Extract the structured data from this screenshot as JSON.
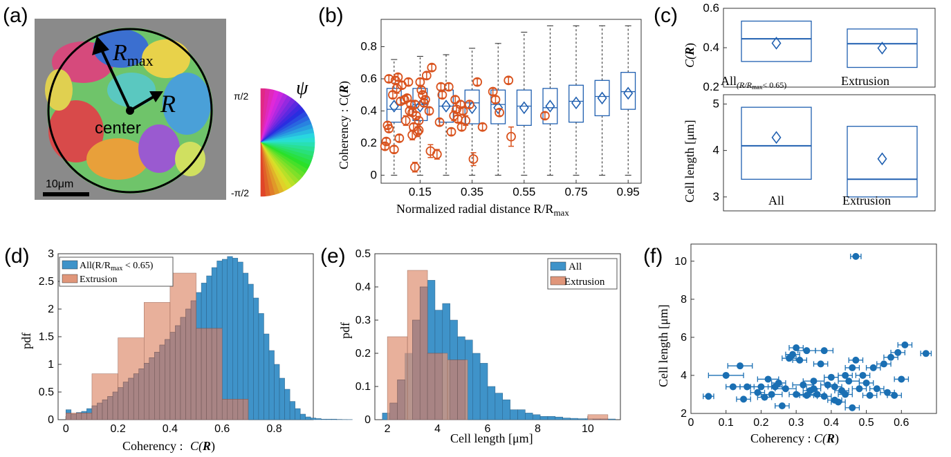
{
  "panel_labels": [
    "(a)",
    "(b)",
    "(c)",
    "(d)",
    "(e)",
    "(f)"
  ],
  "panel_a": {
    "rmax_label": "R",
    "rmax_sub": "max",
    "r_label": "R",
    "center_label": "center",
    "scalebar_label": "10μm",
    "psi_label": "ψ",
    "psi_top": "π/2",
    "psi_bottom": "-π/2"
  },
  "colors": {
    "blue": "#1f5fb0",
    "orange": "#d9531e",
    "hist_blue": "#3f93c9",
    "hist_orange": "#e0967a",
    "overlap": "#a88484",
    "scatter_blue": "#1a6fb3"
  },
  "chart_data": [
    {
      "panel": "b",
      "type": "box",
      "xlabel": "Normalized radial distance R/R",
      "xlabel_sub": "max",
      "ylabel": "Coherency : C(",
      "ylabel_bold": "R",
      "ylabel_close": ")",
      "ylim": [
        -0.05,
        0.97
      ],
      "yticks": [
        "0",
        "0.2",
        "0.4",
        "0.6",
        "0.8"
      ],
      "xticks": [
        "0.15",
        "0.35",
        "0.55",
        "0.75",
        "0.95"
      ],
      "positions": [
        0.05,
        0.15,
        0.25,
        0.35,
        0.45,
        0.55,
        0.65,
        0.75,
        0.85,
        0.95
      ],
      "boxes": [
        {
          "wlo": 0.0,
          "q1": 0.33,
          "med": 0.41,
          "q3": 0.54,
          "whi": 0.72,
          "mean": 0.43
        },
        {
          "wlo": 0.0,
          "q1": 0.34,
          "med": 0.44,
          "q3": 0.54,
          "whi": 0.74,
          "mean": 0.43
        },
        {
          "wlo": 0.0,
          "q1": 0.33,
          "med": 0.43,
          "q3": 0.53,
          "whi": 0.75,
          "mean": 0.43
        },
        {
          "wlo": 0.0,
          "q1": 0.32,
          "med": 0.45,
          "q3": 0.53,
          "whi": 0.79,
          "mean": 0.42
        },
        {
          "wlo": 0.0,
          "q1": 0.32,
          "med": 0.44,
          "q3": 0.53,
          "whi": 0.82,
          "mean": 0.42
        },
        {
          "wlo": 0.0,
          "q1": 0.31,
          "med": 0.43,
          "q3": 0.53,
          "whi": 0.89,
          "mean": 0.42
        },
        {
          "wlo": 0.0,
          "q1": 0.32,
          "med": 0.42,
          "q3": 0.54,
          "whi": 0.93,
          "mean": 0.43
        },
        {
          "wlo": 0.0,
          "q1": 0.33,
          "med": 0.46,
          "q3": 0.56,
          "whi": 0.93,
          "mean": 0.45
        },
        {
          "wlo": 0.0,
          "q1": 0.37,
          "med": 0.49,
          "q3": 0.59,
          "whi": 0.93,
          "mean": 0.48
        },
        {
          "wlo": 0.0,
          "q1": 0.41,
          "med": 0.52,
          "q3": 0.64,
          "whi": 0.93,
          "mean": 0.51
        }
      ],
      "extrusion_points": [
        {
          "x": 0.015,
          "y": 0.18,
          "err": 0.02
        },
        {
          "x": 0.02,
          "y": 0.21,
          "err": 0.02
        },
        {
          "x": 0.025,
          "y": 0.31,
          "err": 0.02
        },
        {
          "x": 0.03,
          "y": 0.29,
          "err": 0.02
        },
        {
          "x": 0.03,
          "y": 0.6,
          "err": 0.02
        },
        {
          "x": 0.045,
          "y": 0.5,
          "err": 0.02
        },
        {
          "x": 0.05,
          "y": 0.16,
          "err": 0.02
        },
        {
          "x": 0.055,
          "y": 0.59,
          "err": 0.02
        },
        {
          "x": 0.06,
          "y": 0.54,
          "err": 0.03
        },
        {
          "x": 0.065,
          "y": 0.61,
          "err": 0.02
        },
        {
          "x": 0.07,
          "y": 0.23,
          "err": 0.02
        },
        {
          "x": 0.075,
          "y": 0.46,
          "err": 0.02
        },
        {
          "x": 0.08,
          "y": 0.56,
          "err": 0.02
        },
        {
          "x": 0.09,
          "y": 0.47,
          "err": 0.02
        },
        {
          "x": 0.095,
          "y": 0.34,
          "err": 0.03
        },
        {
          "x": 0.1,
          "y": 0.48,
          "err": 0.02
        },
        {
          "x": 0.105,
          "y": 0.58,
          "err": 0.02
        },
        {
          "x": 0.11,
          "y": 0.4,
          "err": 0.03
        },
        {
          "x": 0.115,
          "y": 0.44,
          "err": 0.02
        },
        {
          "x": 0.12,
          "y": 0.39,
          "err": 0.02
        },
        {
          "x": 0.12,
          "y": 0.25,
          "err": 0.03
        },
        {
          "x": 0.125,
          "y": 0.3,
          "err": 0.02
        },
        {
          "x": 0.13,
          "y": 0.44,
          "err": 0.02
        },
        {
          "x": 0.13,
          "y": 0.05,
          "err": 0.03
        },
        {
          "x": 0.135,
          "y": 0.37,
          "err": 0.02
        },
        {
          "x": 0.14,
          "y": 0.27,
          "err": 0.03
        },
        {
          "x": 0.145,
          "y": 0.34,
          "err": 0.02
        },
        {
          "x": 0.145,
          "y": 0.28,
          "err": 0.02
        },
        {
          "x": 0.15,
          "y": 0.58,
          "err": 0.02
        },
        {
          "x": 0.155,
          "y": 0.53,
          "err": 0.02
        },
        {
          "x": 0.16,
          "y": 0.5,
          "err": 0.02
        },
        {
          "x": 0.165,
          "y": 0.45,
          "err": 0.02
        },
        {
          "x": 0.17,
          "y": 0.47,
          "err": 0.02
        },
        {
          "x": 0.175,
          "y": 0.62,
          "err": 0.02
        },
        {
          "x": 0.185,
          "y": 0.4,
          "err": 0.02
        },
        {
          "x": 0.19,
          "y": 0.15,
          "err": 0.04
        },
        {
          "x": 0.195,
          "y": 0.67,
          "err": 0.02
        },
        {
          "x": 0.215,
          "y": 0.13,
          "err": 0.03
        },
        {
          "x": 0.225,
          "y": 0.33,
          "err": 0.02
        },
        {
          "x": 0.23,
          "y": 0.55,
          "err": 0.02
        },
        {
          "x": 0.235,
          "y": 0.5,
          "err": 0.02
        },
        {
          "x": 0.26,
          "y": 0.55,
          "err": 0.02
        },
        {
          "x": 0.27,
          "y": 0.27,
          "err": 0.02
        },
        {
          "x": 0.28,
          "y": 0.37,
          "err": 0.03
        },
        {
          "x": 0.285,
          "y": 0.47,
          "err": 0.02
        },
        {
          "x": 0.29,
          "y": 0.41,
          "err": 0.02
        },
        {
          "x": 0.295,
          "y": 0.35,
          "err": 0.02
        },
        {
          "x": 0.305,
          "y": 0.44,
          "err": 0.02
        },
        {
          "x": 0.31,
          "y": 0.3,
          "err": 0.02
        },
        {
          "x": 0.315,
          "y": 0.4,
          "err": 0.02
        },
        {
          "x": 0.325,
          "y": 0.34,
          "err": 0.03
        },
        {
          "x": 0.34,
          "y": 0.44,
          "err": 0.02
        },
        {
          "x": 0.355,
          "y": 0.1,
          "err": 0.04
        },
        {
          "x": 0.37,
          "y": 0.58,
          "err": 0.02
        },
        {
          "x": 0.39,
          "y": 0.3,
          "err": 0.02
        },
        {
          "x": 0.43,
          "y": 0.52,
          "err": 0.02
        },
        {
          "x": 0.44,
          "y": 0.47,
          "err": 0.02
        },
        {
          "x": 0.455,
          "y": 0.39,
          "err": 0.02
        },
        {
          "x": 0.49,
          "y": 0.59,
          "err": 0.02
        },
        {
          "x": 0.5,
          "y": 0.24,
          "err": 0.06
        },
        {
          "x": 0.63,
          "y": 0.37,
          "err": 0.02
        }
      ]
    },
    {
      "panel": "c-top",
      "type": "box",
      "ylabel": "C(",
      "ylabel_bold": "R",
      "ylabel_close": ")",
      "ylim": [
        0.2,
        0.6
      ],
      "yticks": [
        "0.2",
        "0.4",
        "0.6"
      ],
      "categories": [
        "All",
        "Extrusion"
      ],
      "cat1_sub": "(R/R",
      "cat1_subsub": "max",
      "cat1_tail": "< 0.65)",
      "boxes": [
        {
          "q1": 0.33,
          "med": 0.445,
          "q3": 0.535,
          "mean": 0.423
        },
        {
          "q1": 0.3,
          "med": 0.42,
          "q3": 0.495,
          "mean": 0.398
        }
      ]
    },
    {
      "panel": "c-bottom",
      "type": "box",
      "ylabel": "Cell length [μm]",
      "ylim": [
        2.7,
        5.2
      ],
      "yticks": [
        "3",
        "4",
        "5"
      ],
      "categories": [
        "All",
        "Extrusion"
      ],
      "boxes": [
        {
          "q1": 3.38,
          "med": 4.1,
          "q3": 4.93,
          "mean": 4.28
        },
        {
          "q1": 3.0,
          "med": 3.38,
          "q3": 4.52,
          "mean": 3.82
        }
      ]
    },
    {
      "panel": "d",
      "type": "histogram",
      "xlabel": "Coherency : ",
      "xlabel_c": "C(",
      "xlabel_bold": "R",
      "xlabel_close": ")",
      "ylabel": "pdf",
      "xlim": [
        -0.03,
        0.95
      ],
      "ylim": [
        0,
        3
      ],
      "xticks": [
        "0",
        "0.2",
        "0.4",
        "0.6",
        "0.8"
      ],
      "yticks": [
        "0",
        "0.5",
        "1",
        "1.5",
        "2",
        "2.5",
        "3"
      ],
      "legend": [
        "All(R/R",
        "max",
        " < 0.65)",
        "Extrusion"
      ],
      "all_bin_width": 0.02,
      "all_bin_start": 0.0,
      "all_values": [
        0.18,
        0.1,
        0.13,
        0.15,
        0.2,
        0.25,
        0.3,
        0.36,
        0.42,
        0.5,
        0.58,
        0.68,
        0.75,
        0.83,
        0.92,
        1.02,
        1.12,
        1.22,
        1.35,
        1.45,
        1.58,
        1.7,
        1.85,
        2.0,
        2.15,
        2.3,
        2.47,
        2.6,
        2.75,
        2.87,
        2.9,
        2.95,
        2.92,
        2.85,
        2.65,
        2.45,
        2.2,
        1.92,
        1.55,
        1.25,
        1.0,
        0.75,
        0.55,
        0.33,
        0.2,
        0.1,
        0.05,
        0.03,
        0.02,
        0.01,
        0.01,
        0.01,
        0.005,
        0.003,
        0.002
      ],
      "ext_bin_width": 0.1,
      "ext_bin_start": 0.0,
      "ext_values": [
        0.12,
        0.83,
        1.48,
        2.12,
        2.65,
        1.65,
        0.37,
        0,
        0
      ]
    },
    {
      "panel": "e",
      "type": "histogram",
      "xlabel": "Cell length [μm]",
      "ylabel": "pdf",
      "xlim": [
        1.5,
        11.3
      ],
      "ylim": [
        0,
        0.5
      ],
      "xticks": [
        "2",
        "4",
        "6",
        "8",
        "10"
      ],
      "yticks": [
        "0",
        "0.1",
        "0.2",
        "0.3",
        "0.4",
        "0.5"
      ],
      "legend": [
        "All",
        "Extrusion"
      ],
      "all_bin_width": 0.3,
      "all_bin_start": 1.8,
      "all_values": [
        0.02,
        0.05,
        0.12,
        0.2,
        0.3,
        0.4,
        0.42,
        0.33,
        0.35,
        0.3,
        0.25,
        0.24,
        0.2,
        0.17,
        0.1,
        0.08,
        0.06,
        0.03,
        0.03,
        0.02,
        0.015,
        0.01,
        0.01,
        0.008,
        0.005,
        0.004,
        0.003,
        0.003,
        0.002,
        0.002,
        0.002
      ],
      "ext_bin_width": 0.8,
      "ext_bin_start": 2.0,
      "ext_values": [
        0.25,
        0.45,
        0.2,
        0.18,
        0,
        0,
        0,
        0,
        0,
        0,
        0.015
      ]
    },
    {
      "panel": "f",
      "type": "scatter",
      "xlabel": "Coherency : ",
      "xlabel_c": "C(",
      "xlabel_bold": "R",
      "xlabel_close": ")",
      "ylabel": "Cell length [μm]",
      "xlim": [
        0,
        0.7
      ],
      "ylim": [
        2,
        10.9
      ],
      "xticks": [
        "0",
        "0.1",
        "0.2",
        "0.3",
        "0.4",
        "0.5",
        "0.6"
      ],
      "yticks": [
        "2",
        "4",
        "6",
        "8",
        "10"
      ],
      "points": [
        {
          "x": 0.05,
          "y": 2.9,
          "xerr": 0.015
        },
        {
          "x": 0.1,
          "y": 4.0,
          "xerr": 0.05
        },
        {
          "x": 0.12,
          "y": 3.4,
          "xerr": 0.02
        },
        {
          "x": 0.14,
          "y": 4.5,
          "xerr": 0.035
        },
        {
          "x": 0.15,
          "y": 2.75,
          "xerr": 0.02
        },
        {
          "x": 0.16,
          "y": 3.4,
          "xerr": 0.02
        },
        {
          "x": 0.19,
          "y": 3.1,
          "xerr": 0.02
        },
        {
          "x": 0.2,
          "y": 3.4,
          "xerr": 0.03
        },
        {
          "x": 0.21,
          "y": 2.85,
          "xerr": 0.02
        },
        {
          "x": 0.22,
          "y": 3.8,
          "xerr": 0.03
        },
        {
          "x": 0.23,
          "y": 3.0,
          "xerr": 0.03
        },
        {
          "x": 0.24,
          "y": 3.4,
          "xerr": 0.02
        },
        {
          "x": 0.25,
          "y": 3.6,
          "xerr": 0.02
        },
        {
          "x": 0.26,
          "y": 2.4,
          "xerr": 0.02
        },
        {
          "x": 0.27,
          "y": 3.3,
          "xerr": 0.03
        },
        {
          "x": 0.28,
          "y": 4.9,
          "xerr": 0.02
        },
        {
          "x": 0.29,
          "y": 5.1,
          "xerr": 0.02
        },
        {
          "x": 0.3,
          "y": 5.45,
          "xerr": 0.02
        },
        {
          "x": 0.3,
          "y": 3.0,
          "xerr": 0.02
        },
        {
          "x": 0.31,
          "y": 4.8,
          "xerr": 0.02
        },
        {
          "x": 0.32,
          "y": 3.5,
          "xerr": 0.03
        },
        {
          "x": 0.33,
          "y": 2.95,
          "xerr": 0.02
        },
        {
          "x": 0.33,
          "y": 5.3,
          "xerr": 0.025
        },
        {
          "x": 0.34,
          "y": 3.2,
          "xerr": 0.02
        },
        {
          "x": 0.35,
          "y": 3.7,
          "xerr": 0.03
        },
        {
          "x": 0.36,
          "y": 3.0,
          "xerr": 0.02
        },
        {
          "x": 0.37,
          "y": 4.6,
          "xerr": 0.02
        },
        {
          "x": 0.38,
          "y": 2.9,
          "xerr": 0.02
        },
        {
          "x": 0.38,
          "y": 5.3,
          "xerr": 0.025
        },
        {
          "x": 0.39,
          "y": 3.5,
          "xerr": 0.02
        },
        {
          "x": 0.4,
          "y": 3.9,
          "xerr": 0.02
        },
        {
          "x": 0.41,
          "y": 3.4,
          "xerr": 0.02
        },
        {
          "x": 0.42,
          "y": 2.6,
          "xerr": 0.02
        },
        {
          "x": 0.43,
          "y": 3.2,
          "xerr": 0.02
        },
        {
          "x": 0.44,
          "y": 4.0,
          "xerr": 0.02
        },
        {
          "x": 0.45,
          "y": 3.7,
          "xerr": 0.03
        },
        {
          "x": 0.46,
          "y": 2.3,
          "xerr": 0.02
        },
        {
          "x": 0.46,
          "y": 4.4,
          "xerr": 0.02
        },
        {
          "x": 0.47,
          "y": 4.8,
          "xerr": 0.02
        },
        {
          "x": 0.48,
          "y": 3.3,
          "xerr": 0.02
        },
        {
          "x": 0.49,
          "y": 4.0,
          "xerr": 0.02
        },
        {
          "x": 0.5,
          "y": 3.6,
          "xerr": 0.02
        },
        {
          "x": 0.51,
          "y": 2.95,
          "xerr": 0.02
        },
        {
          "x": 0.52,
          "y": 4.4,
          "xerr": 0.02
        },
        {
          "x": 0.53,
          "y": 3.3,
          "xerr": 0.02
        },
        {
          "x": 0.55,
          "y": 4.6,
          "xerr": 0.02
        },
        {
          "x": 0.56,
          "y": 3.1,
          "xerr": 0.02
        },
        {
          "x": 0.57,
          "y": 4.95,
          "xerr": 0.02
        },
        {
          "x": 0.58,
          "y": 2.95,
          "xerr": 0.02
        },
        {
          "x": 0.59,
          "y": 5.2,
          "xerr": 0.02
        },
        {
          "x": 0.6,
          "y": 3.8,
          "xerr": 0.02
        },
        {
          "x": 0.61,
          "y": 5.6,
          "xerr": 0.02
        },
        {
          "x": 0.67,
          "y": 5.15,
          "xerr": 0.015
        },
        {
          "x": 0.47,
          "y": 10.25,
          "xerr": 0.015
        },
        {
          "x": 0.35,
          "y": 3.3,
          "xerr": 0.02
        },
        {
          "x": 0.41,
          "y": 2.7,
          "xerr": 0.02
        },
        {
          "x": 0.44,
          "y": 3.0,
          "xerr": 0.02
        }
      ]
    }
  ]
}
